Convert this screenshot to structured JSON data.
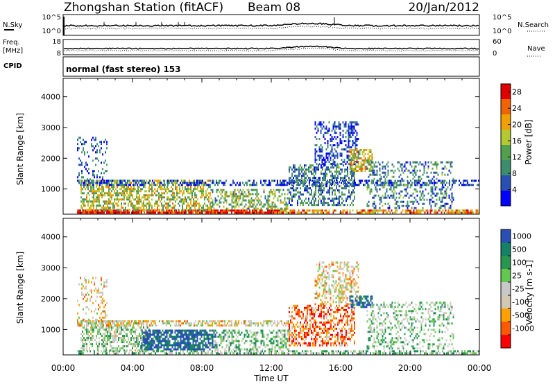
{
  "header": {
    "title": "Zhongshan Station (fitACF)",
    "beam": "Beam 08",
    "date": "20/Jan/2012"
  },
  "status_panel": {
    "nsky_label": "N.Sky",
    "nsky_ticks": [
      "10^5",
      "10^0"
    ],
    "nsearch_label": "N.Search",
    "nsearch_ticks": [
      "10^5",
      "10^0"
    ],
    "freq_label": "Freq.",
    "freq_unit": "[MHz]",
    "freq_ticks": [
      "18",
      "8"
    ],
    "nave_label": "Nave",
    "nave_ticks": [
      "60",
      "0"
    ],
    "cpid_label": "CPID",
    "cpid_text": "normal (fast stereo) 153"
  },
  "chart_data": [
    {
      "type": "heatmap",
      "name": "power-panel",
      "xlabel": "Time UT",
      "ylabel": "Slant Range [km]",
      "x_ticks": [
        "00:00",
        "04:00",
        "08:00",
        "12:00",
        "16:00",
        "20:00",
        "00:00"
      ],
      "xlim_hours": [
        0,
        24
      ],
      "y_ticks": [
        1000,
        2000,
        3000,
        4000
      ],
      "ylim": [
        180,
        4600
      ],
      "colorbar": {
        "label": "Power [dB]",
        "ticks": [
          4,
          8,
          12,
          16,
          20,
          24,
          28
        ],
        "range": [
          0,
          30
        ],
        "colors": [
          "#0000ff",
          "#2850b4",
          "#3c8c6e",
          "#50a050",
          "#b4c832",
          "#f0a000",
          "#f06400",
          "#e00000"
        ]
      },
      "regions": [
        {
          "t": [
            0.8,
            12.5
          ],
          "r": [
            200,
            330
          ],
          "level": 0.95,
          "density": 0.9
        },
        {
          "t": [
            12.5,
            24.0
          ],
          "r": [
            200,
            330
          ],
          "level": 0.75,
          "density": 0.7
        },
        {
          "t": [
            1.0,
            8.5
          ],
          "r": [
            330,
            1300
          ],
          "level": 0.55,
          "density": 0.55
        },
        {
          "t": [
            8.5,
            13.0
          ],
          "r": [
            350,
            1000
          ],
          "level": 0.45,
          "density": 0.45
        },
        {
          "t": [
            0.8,
            24.0
          ],
          "r": [
            1150,
            1300
          ],
          "level": 0.18,
          "density": 0.45
        },
        {
          "t": [
            0.8,
            2.5
          ],
          "r": [
            1300,
            2700
          ],
          "level": 0.2,
          "density": 0.25
        },
        {
          "t": [
            13.0,
            16.8
          ],
          "r": [
            500,
            1800
          ],
          "level": 0.3,
          "density": 0.5
        },
        {
          "t": [
            14.5,
            17.0
          ],
          "r": [
            1800,
            3200
          ],
          "level": 0.15,
          "density": 0.4
        },
        {
          "t": [
            16.5,
            17.8
          ],
          "r": [
            1600,
            2300
          ],
          "level": 0.6,
          "density": 0.6
        },
        {
          "t": [
            17.5,
            22.5
          ],
          "r": [
            400,
            1900
          ],
          "level": 0.3,
          "density": 0.3
        }
      ]
    },
    {
      "type": "heatmap",
      "name": "velocity-panel",
      "xlabel": "Time UT",
      "ylabel": "Slant Range [km]",
      "x_ticks": [
        "00:00",
        "04:00",
        "08:00",
        "12:00",
        "16:00",
        "20:00",
        "00:00"
      ],
      "xlim_hours": [
        0,
        24
      ],
      "y_ticks": [
        1000,
        2000,
        3000,
        4000
      ],
      "ylim": [
        180,
        4600
      ],
      "colorbar": {
        "label": "Velocity [m s-1]",
        "ticks": [
          "1000",
          "500",
          "100",
          "25",
          "-25",
          "-100",
          "-500",
          "-1000"
        ],
        "colors": [
          "#ff0000",
          "#ff5a00",
          "#ffa000",
          "#d2c8b4",
          "#c8c8c8",
          "#64c850",
          "#289650",
          "#148264",
          "#2850b4"
        ]
      },
      "regions": [
        {
          "t": [
            0.8,
            24.0
          ],
          "r": [
            200,
            330
          ],
          "level": 0.6,
          "density": 0.6
        },
        {
          "t": [
            1.0,
            5.0
          ],
          "r": [
            330,
            1300
          ],
          "level": 0.55,
          "density": 0.55
        },
        {
          "t": [
            4.5,
            8.8
          ],
          "r": [
            330,
            1000
          ],
          "level": 0.95,
          "density": 0.75
        },
        {
          "t": [
            8.5,
            13.0
          ],
          "r": [
            350,
            1000
          ],
          "level": 0.6,
          "density": 0.4
        },
        {
          "t": [
            0.8,
            13.0
          ],
          "r": [
            1150,
            1300
          ],
          "level": 0.42,
          "density": 0.55
        },
        {
          "t": [
            0.8,
            2.5
          ],
          "r": [
            1300,
            2700
          ],
          "level": 0.38,
          "density": 0.25
        },
        {
          "t": [
            13.0,
            16.8
          ],
          "r": [
            500,
            1800
          ],
          "level": 0.2,
          "density": 0.5
        },
        {
          "t": [
            14.5,
            17.0
          ],
          "r": [
            1800,
            3200
          ],
          "level": 0.4,
          "density": 0.4
        },
        {
          "t": [
            16.5,
            17.8
          ],
          "r": [
            1700,
            2100
          ],
          "level": 0.9,
          "density": 0.6
        },
        {
          "t": [
            17.5,
            22.5
          ],
          "r": [
            400,
            1900
          ],
          "level": 0.6,
          "density": 0.3
        }
      ]
    }
  ]
}
